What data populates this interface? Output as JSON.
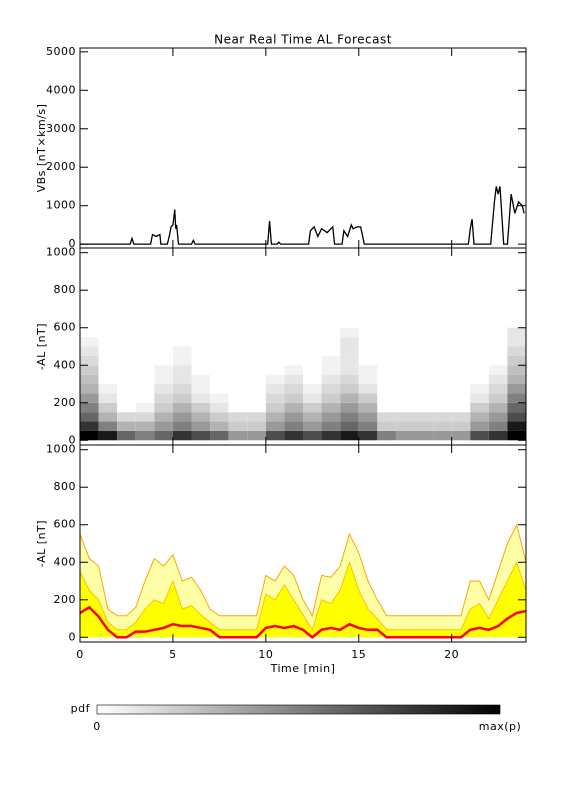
{
  "chart_data": [
    {
      "type": "line",
      "title": "Near Real Time AL Forecast",
      "ylabel": "VBs [nT×km/s]",
      "x": [
        0,
        2.7,
        2.8,
        2.9,
        3.8,
        3.9,
        4.1,
        4.3,
        4.35,
        4.7,
        4.8,
        4.9,
        5.0,
        5.1,
        5.15,
        5.2,
        5.3,
        6.0,
        6.1,
        6.2,
        10.1,
        10.2,
        10.3,
        10.6,
        10.7,
        10.8,
        12.3,
        12.4,
        12.6,
        12.8,
        13.0,
        13.3,
        13.6,
        13.7,
        14.1,
        14.2,
        14.4,
        14.6,
        14.7,
        14.9,
        15.1,
        15.3,
        15.4,
        20.9,
        21.0,
        21.1,
        21.2,
        22.1,
        22.3,
        22.4,
        22.5,
        22.6,
        22.8,
        23.0,
        23.2,
        23.4,
        23.6,
        23.8,
        23.9
      ],
      "values": [
        0,
        0,
        150,
        0,
        0,
        250,
        200,
        250,
        0,
        0,
        200,
        450,
        500,
        900,
        400,
        500,
        0,
        0,
        100,
        0,
        0,
        600,
        0,
        0,
        50,
        0,
        0,
        350,
        450,
        200,
        400,
        300,
        450,
        0,
        0,
        350,
        200,
        500,
        400,
        450,
        450,
        0,
        0,
        0,
        400,
        650,
        0,
        0,
        1100,
        1500,
        1300,
        1500,
        0,
        0,
        1300,
        800,
        1100,
        1000,
        800
      ],
      "color": "#000000",
      "xlim": [
        0,
        24
      ],
      "xticks": [
        0,
        5,
        10,
        15,
        20
      ],
      "ylim": [
        -100,
        5100
      ],
      "yticks": [
        0,
        1000,
        2000,
        3000,
        4000,
        5000
      ]
    },
    {
      "type": "heatmap",
      "ylabel": "-AL [nT]",
      "xbins": [
        0,
        1,
        2,
        3,
        4,
        5,
        6,
        7,
        8,
        9,
        10,
        11,
        12,
        13,
        14,
        15,
        16,
        17,
        18,
        19,
        20,
        21,
        22,
        23,
        24
      ],
      "ybins": [
        0,
        50,
        100,
        150,
        200,
        250,
        300,
        350,
        400,
        450,
        500,
        550,
        600
      ],
      "z": [
        [
          1,
          0.9,
          0.6,
          0.5,
          0.6,
          0.8,
          0.7,
          0.6,
          0.4,
          0.4,
          0.7,
          0.8,
          0.7,
          0.8,
          0.9,
          0.8,
          0.5,
          0.4,
          0.4,
          0.4,
          0.4,
          0.7,
          0.8,
          1
        ],
        [
          0.8,
          0.5,
          0.3,
          0.3,
          0.4,
          0.5,
          0.4,
          0.3,
          0.2,
          0.2,
          0.4,
          0.5,
          0.4,
          0.5,
          0.6,
          0.5,
          0.2,
          0.2,
          0.2,
          0.2,
          0.2,
          0.4,
          0.5,
          0.9
        ],
        [
          0.6,
          0.3,
          0.15,
          0.15,
          0.3,
          0.4,
          0.3,
          0.2,
          0.15,
          0.15,
          0.3,
          0.4,
          0.3,
          0.4,
          0.5,
          0.4,
          0.15,
          0.15,
          0.15,
          0.15,
          0.15,
          0.3,
          0.4,
          0.7
        ],
        [
          0.5,
          0.2,
          0,
          0.05,
          0.2,
          0.3,
          0.2,
          0.1,
          0,
          0,
          0.2,
          0.3,
          0.2,
          0.3,
          0.4,
          0.3,
          0,
          0,
          0,
          0,
          0,
          0.2,
          0.3,
          0.6
        ],
        [
          0.4,
          0.1,
          0,
          0,
          0.15,
          0.2,
          0.1,
          0.05,
          0,
          0,
          0.15,
          0.2,
          0.1,
          0.2,
          0.3,
          0.2,
          0,
          0,
          0,
          0,
          0,
          0.1,
          0.2,
          0.5
        ],
        [
          0.3,
          0.05,
          0,
          0,
          0.1,
          0.15,
          0.05,
          0,
          0,
          0,
          0.1,
          0.15,
          0.05,
          0.15,
          0.2,
          0.1,
          0,
          0,
          0,
          0,
          0,
          0.05,
          0.15,
          0.4
        ],
        [
          0.25,
          0,
          0,
          0,
          0.05,
          0.1,
          0.05,
          0,
          0,
          0,
          0.05,
          0.1,
          0,
          0.1,
          0.15,
          0.05,
          0,
          0,
          0,
          0,
          0,
          0,
          0.1,
          0.3
        ],
        [
          0.2,
          0,
          0,
          0,
          0.05,
          0.1,
          0,
          0,
          0,
          0,
          0,
          0.05,
          0,
          0.05,
          0.1,
          0.05,
          0,
          0,
          0,
          0,
          0,
          0,
          0.05,
          0.25
        ],
        [
          0.15,
          0,
          0,
          0,
          0,
          0.05,
          0,
          0,
          0,
          0,
          0,
          0,
          0,
          0.05,
          0.1,
          0,
          0,
          0,
          0,
          0,
          0,
          0,
          0,
          0.2
        ],
        [
          0.1,
          0,
          0,
          0,
          0,
          0.05,
          0,
          0,
          0,
          0,
          0,
          0,
          0,
          0,
          0.1,
          0,
          0,
          0,
          0,
          0,
          0,
          0,
          0,
          0.15
        ],
        [
          0.05,
          0,
          0,
          0,
          0,
          0,
          0,
          0,
          0,
          0,
          0,
          0,
          0,
          0,
          0.1,
          0,
          0,
          0,
          0,
          0,
          0,
          0,
          0,
          0.1
        ],
        [
          0,
          0,
          0,
          0,
          0,
          0,
          0,
          0,
          0,
          0,
          0,
          0,
          0,
          0,
          0.05,
          0,
          0,
          0,
          0,
          0,
          0,
          0,
          0,
          0.1
        ]
      ],
      "colorbar": {
        "label": "pdf",
        "min_label": "0",
        "max_label": "max(p)"
      },
      "xlim": [
        0,
        24
      ],
      "xticks": [
        0,
        5,
        10,
        15,
        20
      ],
      "ylim": [
        -25,
        1025
      ],
      "yticks": [
        0,
        200,
        400,
        600,
        800,
        1000
      ]
    },
    {
      "type": "area",
      "ylabel": "-AL [nT]",
      "xlabel": "Time [min]",
      "xtick_labels": true,
      "x": [
        0,
        0.5,
        1,
        1.5,
        2,
        2.5,
        3,
        3.5,
        4,
        4.5,
        5,
        5.5,
        6,
        6.5,
        7,
        7.5,
        8,
        8.5,
        9,
        9.5,
        10,
        10.5,
        11,
        11.5,
        12,
        12.5,
        13,
        13.5,
        14,
        14.5,
        15,
        15.5,
        16,
        16.5,
        17,
        17.5,
        18,
        18.5,
        19,
        19.5,
        20,
        20.5,
        21,
        21.5,
        22,
        22.5,
        23,
        23.5,
        24
      ],
      "series": [
        {
          "color": "#ffa500",
          "fill": "#ffffa8",
          "values": [
            550,
            420,
            380,
            150,
            115,
            115,
            160,
            300,
            420,
            380,
            440,
            300,
            320,
            250,
            150,
            115,
            115,
            115,
            115,
            115,
            330,
            300,
            380,
            330,
            200,
            115,
            330,
            320,
            380,
            550,
            450,
            300,
            200,
            115,
            115,
            115,
            115,
            115,
            115,
            115,
            115,
            115,
            300,
            300,
            200,
            350,
            500,
            600,
            400
          ]
        },
        {
          "color": "#ffc000",
          "fill": "#ffff00",
          "values": [
            350,
            250,
            200,
            80,
            40,
            40,
            80,
            150,
            200,
            180,
            300,
            150,
            170,
            120,
            80,
            40,
            40,
            40,
            40,
            40,
            230,
            200,
            280,
            200,
            120,
            40,
            200,
            180,
            250,
            400,
            250,
            150,
            100,
            40,
            40,
            40,
            40,
            40,
            40,
            40,
            40,
            40,
            150,
            180,
            100,
            200,
            300,
            400,
            250
          ]
        },
        {
          "color": "#ff0000",
          "values": [
            130,
            160,
            110,
            40,
            0,
            0,
            30,
            30,
            40,
            50,
            70,
            60,
            60,
            50,
            40,
            0,
            0,
            0,
            0,
            0,
            50,
            60,
            50,
            60,
            40,
            0,
            40,
            50,
            40,
            70,
            50,
            40,
            40,
            0,
            0,
            0,
            0,
            0,
            0,
            0,
            0,
            0,
            40,
            50,
            40,
            60,
            100,
            130,
            140
          ]
        }
      ],
      "xlim": [
        0,
        24
      ],
      "xticks": [
        0,
        5,
        10,
        15,
        20
      ],
      "ylim": [
        -25,
        1025
      ],
      "yticks": [
        0,
        200,
        400,
        600,
        800,
        1000
      ]
    }
  ]
}
